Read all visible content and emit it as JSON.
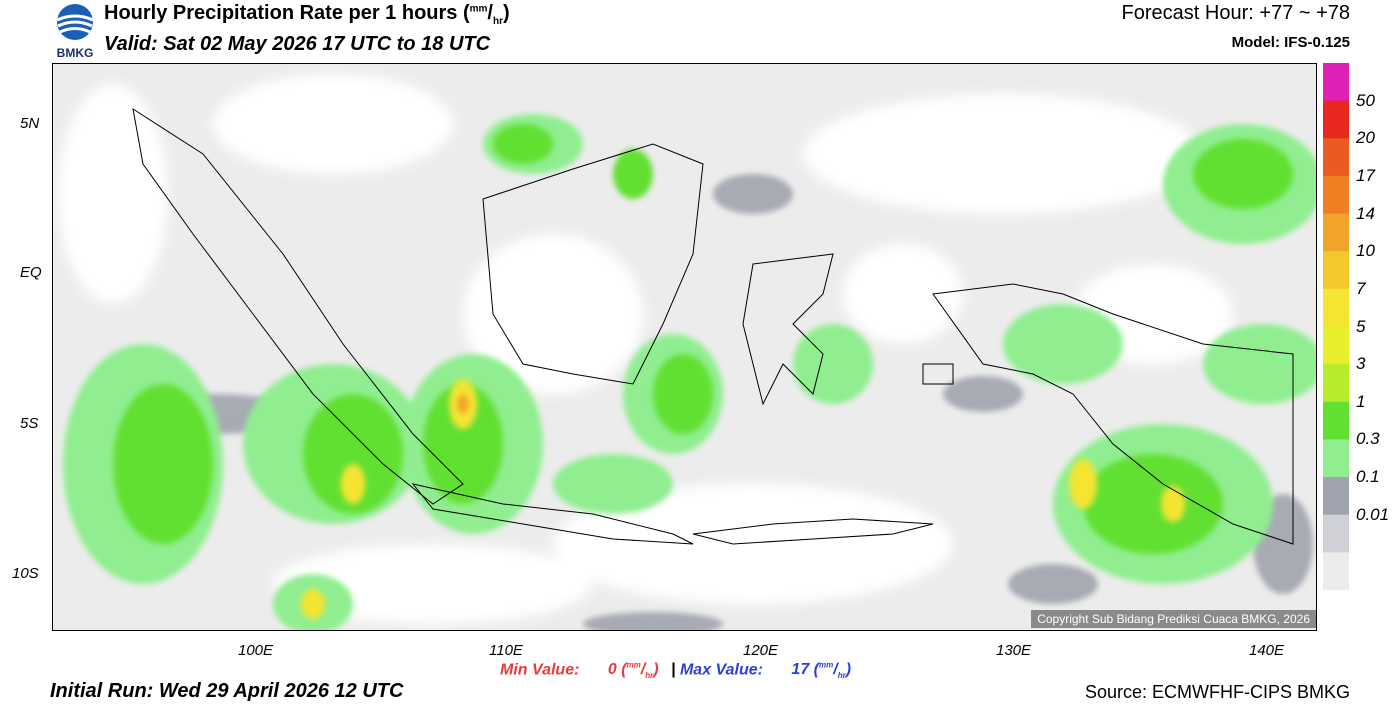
{
  "header": {
    "title_main": "Hourly Precipitation Rate per 1 hours (",
    "unit_num": "mm",
    "unit_den": "hr",
    "title_close": ")",
    "valid": "Valid: Sat 02 May 2026 17 UTC to 18 UTC",
    "forecast_hour": "Forecast Hour: +77 ~ +78",
    "model": "Model: IFS-0.125",
    "logo_text": "BMKG"
  },
  "axes": {
    "y_ticks": [
      "5N",
      "EQ",
      "5S",
      "10S"
    ],
    "x_ticks": [
      "100E",
      "110E",
      "120E",
      "130E",
      "140E"
    ]
  },
  "colorbar": {
    "labels": [
      "50",
      "20",
      "17",
      "14",
      "10",
      "7",
      "5",
      "3",
      "1",
      "0.3",
      "0.1",
      "0.01"
    ],
    "colors": [
      "#e021b5",
      "#e8281f",
      "#eb5a1e",
      "#f07e22",
      "#f2a42a",
      "#f5c72e",
      "#f5e430",
      "#e8ee2b",
      "#b8ec2a",
      "#62e031",
      "#90ee90",
      "#a0a4ae",
      "#cfd1d6",
      "#ececec"
    ]
  },
  "footer": {
    "min_label": "Min Value:",
    "min_value": "0",
    "separator": "|",
    "max_label": "Max Value:",
    "max_value": "17",
    "unit_num": "mm",
    "unit_den": "hr",
    "initial_run": "Initial Run: Wed 29 April 2026 12 UTC",
    "source": "Source: ECMWFHF-CIPS BMKG",
    "copyright": "Copyright Sub Bidang Prediksi Cuaca BMKG, 2026"
  },
  "colors": {
    "land_bg": "#ffffff",
    "light_gray": "#e8e8e8",
    "mid_gray": "#a0a4ae",
    "light_green": "#90ee90",
    "green": "#62e031",
    "yellow_green": "#b8ec2a",
    "yellow": "#f5e430",
    "orange": "#f2a42a",
    "red": "#e8281f"
  }
}
